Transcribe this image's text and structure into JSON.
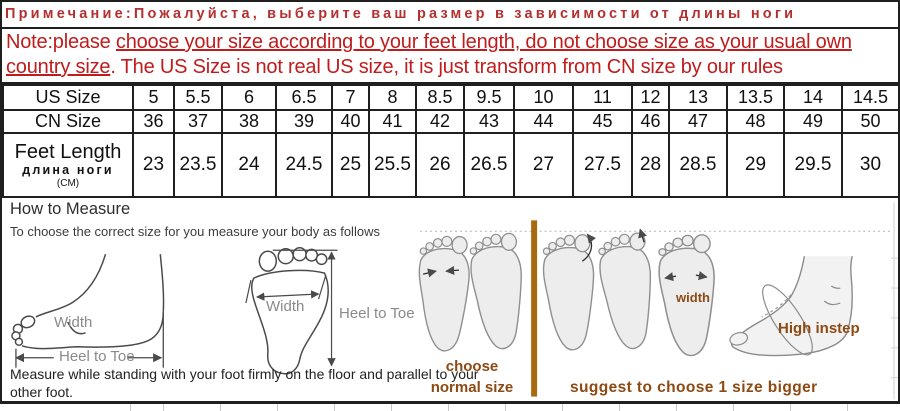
{
  "colors": {
    "ru_red": "#b33030",
    "note_red": "#bf1d1d",
    "brown": "#8d4a12",
    "bar_brown": "#a8690f",
    "grey": "#8a8a8a"
  },
  "notice_ru": "Примечание:Пожалуйста, выберите ваш размер в зависимости от длины ноги",
  "note": {
    "prefix": "Note:please ",
    "underlined": "choose your size according to your feet length, do not choose size as your usual own country size",
    "rest": ". The US Size is not real US size, it is just transform from CN size by our rules"
  },
  "size_table": {
    "rows": [
      {
        "key": "us-size",
        "label_lines": [
          "US Size"
        ],
        "values": [
          "5",
          "5.5",
          "6",
          "6.5",
          "7",
          "8",
          "8.5",
          "9.5",
          "10",
          "11",
          "12",
          "13",
          "13.5",
          "14",
          "14.5"
        ]
      },
      {
        "key": "cn-size",
        "label_lines": [
          "CN Size"
        ],
        "values": [
          "36",
          "37",
          "38",
          "39",
          "40",
          "41",
          "42",
          "43",
          "44",
          "45",
          "46",
          "47",
          "48",
          "49",
          "50"
        ]
      },
      {
        "key": "feet-length",
        "label_lines": [
          "Feet Length",
          "длина ноги",
          "(CM)"
        ],
        "values": [
          "23",
          "23.5",
          "24",
          "24.5",
          "25",
          "25.5",
          "26",
          "26.5",
          "27",
          "27.5",
          "28",
          "28.5",
          "29",
          "29.5",
          "30"
        ]
      }
    ]
  },
  "measure": {
    "title": "How to Measure",
    "subtitle": "To choose the correct size for you measure your body as follows",
    "side_width_label": "Width",
    "side_heel_toe_label": "Heel to Toe",
    "top_width_label": "Width",
    "top_heel_toe_label": "Heel to Toe",
    "standing_note": "Measure while standing with your foot firmly on the floor and parallel to your other foot.",
    "choose_line1": "choose",
    "choose_line2": "normal size",
    "suggest_label": "suggest to choose 1 size bigger",
    "width_label": "width",
    "high_instep_label": "High instep"
  }
}
